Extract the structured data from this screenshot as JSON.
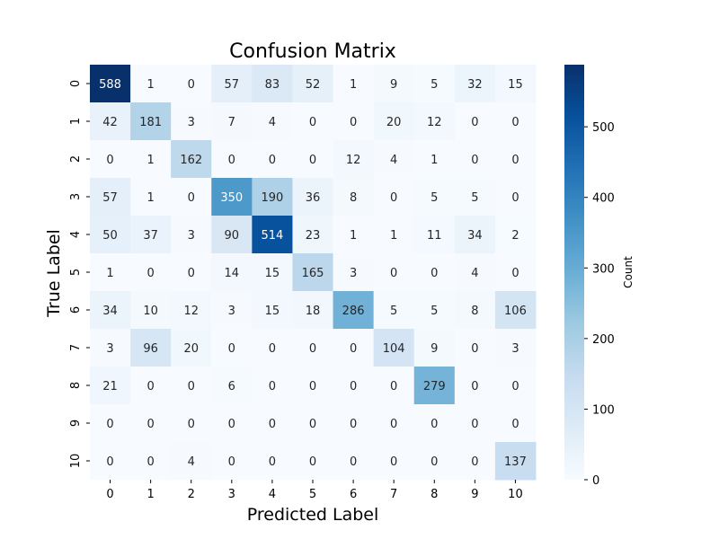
{
  "chart_data": {
    "type": "heatmap",
    "title": "Confusion Matrix",
    "xlabel": "Predicted Label",
    "ylabel": "True Label",
    "x_categories": [
      "0",
      "1",
      "2",
      "3",
      "4",
      "5",
      "6",
      "7",
      "8",
      "9",
      "10"
    ],
    "y_categories": [
      "0",
      "1",
      "2",
      "3",
      "4",
      "5",
      "6",
      "7",
      "8",
      "9",
      "10"
    ],
    "values": [
      [
        588,
        1,
        0,
        57,
        83,
        52,
        1,
        9,
        5,
        32,
        15
      ],
      [
        42,
        181,
        3,
        7,
        4,
        0,
        0,
        20,
        12,
        0,
        0
      ],
      [
        0,
        1,
        162,
        0,
        0,
        0,
        12,
        4,
        1,
        0,
        0
      ],
      [
        57,
        1,
        0,
        350,
        190,
        36,
        8,
        0,
        5,
        5,
        0
      ],
      [
        50,
        37,
        3,
        90,
        514,
        23,
        1,
        1,
        11,
        34,
        2
      ],
      [
        1,
        0,
        0,
        14,
        15,
        165,
        3,
        0,
        0,
        4,
        0
      ],
      [
        34,
        10,
        12,
        3,
        15,
        18,
        286,
        5,
        5,
        8,
        106
      ],
      [
        3,
        96,
        20,
        0,
        0,
        0,
        0,
        104,
        9,
        0,
        3
      ],
      [
        21,
        0,
        0,
        6,
        0,
        0,
        0,
        0,
        279,
        0,
        0
      ],
      [
        0,
        0,
        0,
        0,
        0,
        0,
        0,
        0,
        0,
        0,
        0
      ],
      [
        0,
        0,
        4,
        0,
        0,
        0,
        0,
        0,
        0,
        0,
        137
      ]
    ],
    "colormap": "Blues",
    "vmin": 0,
    "vmax": 588,
    "colorbar": {
      "label": "Count",
      "ticks": [
        0,
        100,
        200,
        300,
        400,
        500
      ]
    },
    "annotated": true,
    "grid": false
  }
}
